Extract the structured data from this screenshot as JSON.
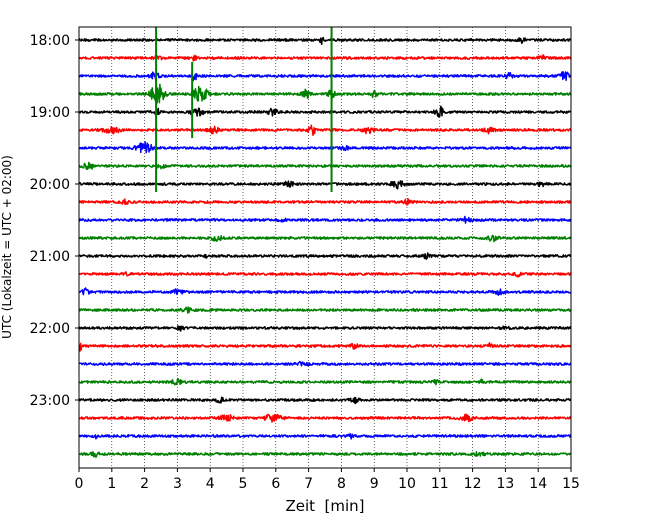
{
  "chart_data": {
    "type": "line",
    "title": "",
    "xlabel": "Zeit  [min]",
    "ylabel": "UTC (Lokalzeit = UTC + 02:00)",
    "xlim": [
      0,
      15
    ],
    "x_ticks": [
      0,
      1,
      2,
      3,
      4,
      5,
      6,
      7,
      8,
      9,
      10,
      11,
      12,
      13,
      14,
      15
    ],
    "x_tick_labels": [
      "0",
      "1",
      "2",
      "3",
      "4",
      "5",
      "6",
      "7",
      "8",
      "9",
      "10",
      "11",
      "12",
      "13",
      "14",
      "15"
    ],
    "y_tick_labels": [
      "18:00",
      "19:00",
      "20:00",
      "21:00",
      "22:00",
      "23:00"
    ],
    "grid": "vertical dotted lines at each minute",
    "trace_interval_minutes": 15,
    "trace_colors": [
      "#000000",
      "#ff0000",
      "#0000ff",
      "#008000"
    ],
    "traces": [
      {
        "time": "18:00",
        "events": [
          {
            "x": 7.4,
            "amp": 0.9,
            "w": 0.05
          },
          {
            "x": 13.5,
            "amp": 0.5,
            "w": 0.1
          }
        ]
      },
      {
        "time": "18:15",
        "events": [
          {
            "x": 2.4,
            "amp": 0.6,
            "w": 0.1
          },
          {
            "x": 3.5,
            "amp": 0.5,
            "w": 0.1
          },
          {
            "x": 14.1,
            "amp": 0.7,
            "w": 0.1
          }
        ]
      },
      {
        "time": "18:30",
        "events": [
          {
            "x": 2.3,
            "amp": 1.0,
            "w": 0.12
          },
          {
            "x": 3.5,
            "amp": 1.1,
            "w": 0.08
          },
          {
            "x": 13.1,
            "amp": 0.7,
            "w": 0.1
          },
          {
            "x": 14.8,
            "amp": 1.0,
            "w": 0.12
          }
        ]
      },
      {
        "time": "18:45",
        "events": [
          {
            "x": 2.4,
            "amp": 2.5,
            "w": 0.2
          },
          {
            "x": 3.7,
            "amp": 2.0,
            "w": 0.2
          },
          {
            "x": 6.9,
            "amp": 1.2,
            "w": 0.1
          },
          {
            "x": 7.7,
            "amp": 1.0,
            "w": 0.1
          },
          {
            "x": 9.0,
            "amp": 0.8,
            "w": 0.1
          }
        ]
      },
      {
        "time": "19:00",
        "events": [
          {
            "x": 2.4,
            "amp": 0.6,
            "w": 0.1
          },
          {
            "x": 3.6,
            "amp": 0.8,
            "w": 0.2
          },
          {
            "x": 5.9,
            "amp": 0.9,
            "w": 0.12
          },
          {
            "x": 11.0,
            "amp": 1.2,
            "w": 0.12
          }
        ]
      },
      {
        "time": "19:15",
        "events": [
          {
            "x": 1.0,
            "amp": 0.7,
            "w": 0.25
          },
          {
            "x": 4.1,
            "amp": 0.8,
            "w": 0.15
          },
          {
            "x": 7.1,
            "amp": 1.1,
            "w": 0.1
          },
          {
            "x": 8.8,
            "amp": 0.7,
            "w": 0.15
          },
          {
            "x": 12.5,
            "amp": 0.7,
            "w": 0.15
          }
        ]
      },
      {
        "time": "19:30",
        "events": [
          {
            "x": 2.0,
            "amp": 1.2,
            "w": 0.25
          },
          {
            "x": 8.1,
            "amp": 0.5,
            "w": 0.1
          }
        ]
      },
      {
        "time": "19:45",
        "events": [
          {
            "x": 0.3,
            "amp": 0.8,
            "w": 0.15
          },
          {
            "x": 2.5,
            "amp": 0.5,
            "w": 0.1
          }
        ]
      },
      {
        "time": "20:00",
        "events": [
          {
            "x": 6.4,
            "amp": 0.7,
            "w": 0.12
          },
          {
            "x": 9.7,
            "amp": 0.9,
            "w": 0.2
          },
          {
            "x": 14.1,
            "amp": 0.5,
            "w": 0.1
          }
        ]
      },
      {
        "time": "20:15",
        "events": [
          {
            "x": 1.4,
            "amp": 0.5,
            "w": 0.1
          },
          {
            "x": 10.0,
            "amp": 0.6,
            "w": 0.1
          }
        ]
      },
      {
        "time": "20:30",
        "events": [
          {
            "x": 6.2,
            "amp": 0.5,
            "w": 0.1
          },
          {
            "x": 11.8,
            "amp": 0.6,
            "w": 0.15
          }
        ]
      },
      {
        "time": "20:45",
        "events": [
          {
            "x": 4.2,
            "amp": 0.6,
            "w": 0.15
          },
          {
            "x": 12.6,
            "amp": 0.7,
            "w": 0.15
          }
        ]
      },
      {
        "time": "21:00",
        "events": [
          {
            "x": 3.9,
            "amp": 0.8,
            "w": 0.05
          },
          {
            "x": 10.6,
            "amp": 0.5,
            "w": 0.1
          }
        ]
      },
      {
        "time": "21:15",
        "events": [
          {
            "x": 1.5,
            "amp": 0.5,
            "w": 0.1
          },
          {
            "x": 13.4,
            "amp": 0.5,
            "w": 0.1
          }
        ]
      },
      {
        "time": "21:30",
        "events": [
          {
            "x": 0.2,
            "amp": 0.7,
            "w": 0.1
          },
          {
            "x": 3.0,
            "amp": 0.5,
            "w": 0.15
          },
          {
            "x": 12.8,
            "amp": 0.5,
            "w": 0.15
          }
        ]
      },
      {
        "time": "21:45",
        "events": [
          {
            "x": 3.3,
            "amp": 0.5,
            "w": 0.15
          }
        ]
      },
      {
        "time": "22:00",
        "events": [
          {
            "x": 3.1,
            "amp": 0.5,
            "w": 0.1
          },
          {
            "x": 13.0,
            "amp": 0.5,
            "w": 0.1
          }
        ]
      },
      {
        "time": "22:15",
        "events": [
          {
            "x": 0.05,
            "amp": 1.2,
            "w": 0.05
          },
          {
            "x": 8.4,
            "amp": 0.6,
            "w": 0.1
          },
          {
            "x": 12.5,
            "amp": 0.5,
            "w": 0.1
          }
        ]
      },
      {
        "time": "22:30",
        "events": [
          {
            "x": 6.8,
            "amp": 0.4,
            "w": 0.15
          }
        ]
      },
      {
        "time": "22:45",
        "events": [
          {
            "x": 3.0,
            "amp": 0.6,
            "w": 0.15
          },
          {
            "x": 10.9,
            "amp": 0.5,
            "w": 0.1
          },
          {
            "x": 12.3,
            "amp": 0.8,
            "w": 0.05
          }
        ]
      },
      {
        "time": "23:00",
        "events": [
          {
            "x": 8.4,
            "amp": 0.9,
            "w": 0.12
          },
          {
            "x": 4.3,
            "amp": 0.5,
            "w": 0.1
          }
        ]
      },
      {
        "time": "23:15",
        "events": [
          {
            "x": 4.5,
            "amp": 0.7,
            "w": 0.2
          },
          {
            "x": 5.9,
            "amp": 0.8,
            "w": 0.25
          },
          {
            "x": 11.8,
            "amp": 0.7,
            "w": 0.2
          }
        ]
      },
      {
        "time": "23:30",
        "events": [
          {
            "x": 0.5,
            "amp": 0.6,
            "w": 0.05
          },
          {
            "x": 8.3,
            "amp": 0.5,
            "w": 0.1
          }
        ]
      },
      {
        "time": "23:45",
        "events": [
          {
            "x": 0.5,
            "amp": 0.5,
            "w": 0.1
          },
          {
            "x": 12.2,
            "amp": 0.5,
            "w": 0.15
          }
        ]
      }
    ],
    "spikes": [
      {
        "x": 2.35,
        "from": "18:00",
        "to": "20:00",
        "color": "#008000"
      },
      {
        "x": 3.45,
        "from": "18:30",
        "to": "19:15",
        "color": "#008000"
      },
      {
        "x": 7.7,
        "from": "18:00",
        "to": "20:00",
        "color": "#008000"
      }
    ]
  }
}
